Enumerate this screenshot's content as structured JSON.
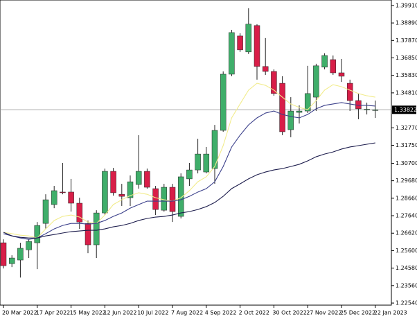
{
  "chart_data": {
    "type": "candlestick",
    "categories": [
      "20 Mar 2022",
      null,
      null,
      null,
      "17 Apr 2022",
      null,
      null,
      null,
      "15 May 2022",
      null,
      null,
      null,
      "12 Jun 2022",
      null,
      null,
      null,
      "10 Jul 2022",
      null,
      null,
      null,
      "7 Aug 2022",
      null,
      null,
      null,
      "4 Sep 2022",
      null,
      null,
      null,
      "2 Oct 2022",
      null,
      null,
      null,
      "30 Oct 2022",
      null,
      null,
      null,
      "27 Nov 2022",
      null,
      null,
      null,
      "25 Dec 2022",
      null,
      null,
      null,
      "22 Jan 2023"
    ],
    "open": [
      1.2606,
      1.2484,
      1.2505,
      1.2565,
      1.2606,
      1.2719,
      1.2829,
      1.2902,
      1.2902,
      1.2837,
      1.2719,
      1.2594,
      1.278,
      1.3023,
      1.2889,
      1.2869,
      1.2946,
      1.3023,
      1.2922,
      1.2796,
      1.293,
      1.276,
      1.2979,
      1.3031,
      1.3019,
      1.3039,
      1.3262,
      1.359,
      1.3813,
      1.372,
      1.3874,
      1.3635,
      1.3606,
      1.3537,
      1.3266,
      1.3367,
      1.3375,
      1.3456,
      1.3631,
      1.3675,
      1.3598,
      1.3537,
      1.3436,
      1.3383,
      1.3379
    ],
    "high": [
      1.2626,
      1.2533,
      1.2606,
      1.2626,
      1.2727,
      1.2889,
      1.2938,
      1.3072,
      1.2979,
      1.2869,
      1.2736,
      1.2796,
      1.3039,
      1.3043,
      1.295,
      1.2999,
      1.3234,
      1.3039,
      1.2938,
      1.295,
      1.295,
      1.3011,
      1.3072,
      1.3213,
      1.3165,
      1.3294,
      1.3606,
      1.3849,
      1.3829,
      1.3975,
      1.3882,
      1.3801,
      1.3618,
      1.3578,
      1.3456,
      1.3408,
      1.3639,
      1.3651,
      1.3712,
      1.3699,
      1.3679,
      1.3558,
      1.3477,
      1.3424,
      1.3436
    ],
    "low": [
      1.2456,
      1.2464,
      1.2403,
      1.2517,
      1.2452,
      1.2687,
      1.2808,
      1.2889,
      1.2788,
      1.2687,
      1.2545,
      1.2517,
      1.2768,
      1.2881,
      1.2821,
      1.2821,
      1.2922,
      1.2922,
      1.2768,
      1.2788,
      1.2727,
      1.2748,
      1.2938,
      1.3011,
      1.3011,
      1.295,
      1.3254,
      1.3578,
      1.372,
      1.3708,
      1.3558,
      1.3586,
      1.3464,
      1.3234,
      1.3222,
      1.3302,
      1.3363,
      1.3375,
      1.3618,
      1.3586,
      1.3545,
      1.3375,
      1.3327,
      1.3355,
      1.3335
    ],
    "close": [
      1.2472,
      1.2517,
      1.2574,
      1.2614,
      1.2707,
      1.2857,
      1.291,
      1.2898,
      1.2837,
      1.2727,
      1.2594,
      1.278,
      1.3023,
      1.2898,
      1.2877,
      1.2962,
      1.3023,
      1.293,
      1.28,
      1.293,
      1.2788,
      1.2991,
      1.3031,
      1.3124,
      1.3124,
      1.3262,
      1.359,
      1.3833,
      1.3732,
      1.3882,
      1.3635,
      1.3606,
      1.3477,
      1.3254,
      1.3375,
      1.3375,
      1.3477,
      1.3639,
      1.3699,
      1.3598,
      1.3578,
      1.3436,
      1.3388,
      1.3385,
      1.3382
    ],
    "up_color": "#3fae6a",
    "down_color": "#d81e48",
    "series": [
      {
        "color": "#f2ec8c",
        "values": [
          1.2667,
          1.2659,
          1.265,
          1.2646,
          1.2634,
          1.2687,
          1.2736,
          1.276,
          1.2768,
          1.2756,
          1.2727,
          1.2719,
          1.2768,
          1.2829,
          1.2857,
          1.2881,
          1.2898,
          1.2889,
          1.2869,
          1.2857,
          1.2849,
          1.2869,
          1.291,
          1.2962,
          1.2991,
          1.3051,
          1.3173,
          1.3335,
          1.3416,
          1.3497,
          1.3537,
          1.3525,
          1.3497,
          1.3456,
          1.3416,
          1.3396,
          1.3383,
          1.3436,
          1.3497,
          1.3529,
          1.3517,
          1.3497,
          1.3477,
          1.3464,
          1.3456
        ]
      },
      {
        "color": "#3a3f8a",
        "values": [
          1.2659,
          1.2646,
          1.2634,
          1.2626,
          1.2634,
          1.2659,
          1.2687,
          1.2707,
          1.2719,
          1.2719,
          1.2715,
          1.2719,
          1.2736,
          1.276,
          1.278,
          1.2808,
          1.2829,
          1.2849,
          1.2849,
          1.2849,
          1.2849,
          1.2857,
          1.2877,
          1.2902,
          1.2922,
          1.2962,
          1.3051,
          1.3165,
          1.3234,
          1.3294,
          1.3335,
          1.3363,
          1.3375,
          1.3355,
          1.3343,
          1.3335,
          1.3355,
          1.3388,
          1.3408,
          1.3416,
          1.3424,
          1.3416,
          1.3408,
          1.3408,
          1.3404
        ]
      },
      {
        "color": "#1c1c4c",
        "values": [
          1.2667,
          1.2646,
          1.2638,
          1.2634,
          1.2634,
          1.2646,
          1.2654,
          1.2663,
          1.2671,
          1.2675,
          1.2679,
          1.2679,
          1.2687,
          1.2699,
          1.2707,
          1.2719,
          1.2736,
          1.2748,
          1.2756,
          1.276,
          1.2768,
          1.278,
          1.2788,
          1.28,
          1.2817,
          1.2841,
          1.2877,
          1.2922,
          1.295,
          1.2979,
          1.3003,
          1.3019,
          1.3031,
          1.3039,
          1.3051,
          1.3064,
          1.3084,
          1.3108,
          1.3124,
          1.3136,
          1.3153,
          1.3165,
          1.3173,
          1.3181,
          1.3189
        ]
      }
    ],
    "current_price": 1.33822,
    "ylim": [
      1.2242,
      1.4023
    ],
    "yticks": [
      {
        "value": 1.3991,
        "label": "1.39910"
      },
      {
        "value": 1.3889,
        "label": "1.38890"
      },
      {
        "value": 1.3787,
        "label": "1.37870"
      },
      {
        "value": 1.3685,
        "label": "1.36850"
      },
      {
        "value": 1.3583,
        "label": "1.35830"
      },
      {
        "value": 1.3481,
        "label": "1.34810"
      },
      {
        "value": 1.3277,
        "label": "1.32770"
      },
      {
        "value": 1.3175,
        "label": "1.31750"
      },
      {
        "value": 1.307,
        "label": "1.30700"
      },
      {
        "value": 1.2968,
        "label": "1.29680"
      },
      {
        "value": 1.2866,
        "label": "1.28660"
      },
      {
        "value": 1.2764,
        "label": "1.27640"
      },
      {
        "value": 1.2662,
        "label": "1.26620"
      },
      {
        "value": 1.256,
        "label": "1.25600"
      },
      {
        "value": 1.2458,
        "label": "1.24580"
      },
      {
        "value": 1.2356,
        "label": "1.23560"
      },
      {
        "value": 1.2254,
        "label": "1.22540"
      }
    ],
    "grid": false
  }
}
